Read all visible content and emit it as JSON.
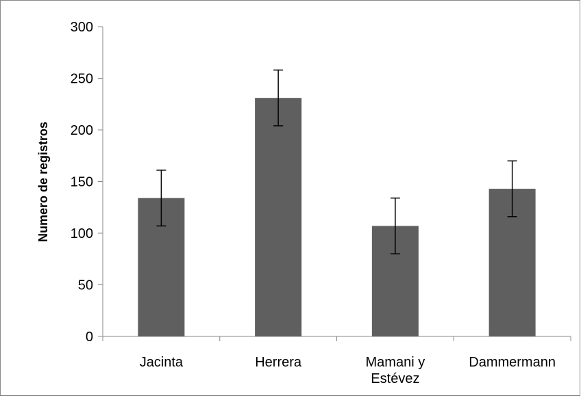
{
  "chart_data": {
    "type": "bar",
    "title": "",
    "xlabel": "",
    "ylabel": "Numero de registros",
    "categories": [
      [
        "Jacinta"
      ],
      [
        "Herrera"
      ],
      [
        "Mamani y",
        "Estévez"
      ],
      [
        "Dammermann"
      ]
    ],
    "values": [
      134,
      231,
      107,
      143
    ],
    "error_low": [
      107,
      204,
      80,
      116
    ],
    "error_high": [
      161,
      258,
      134,
      170
    ],
    "ylim": [
      0,
      300
    ],
    "yticks": [
      "0",
      "50",
      "100",
      "150",
      "200",
      "250",
      "300"
    ],
    "grid": false,
    "legend": "none",
    "bar_color": "#5f5f5f",
    "error_bar_color": "#000000"
  }
}
